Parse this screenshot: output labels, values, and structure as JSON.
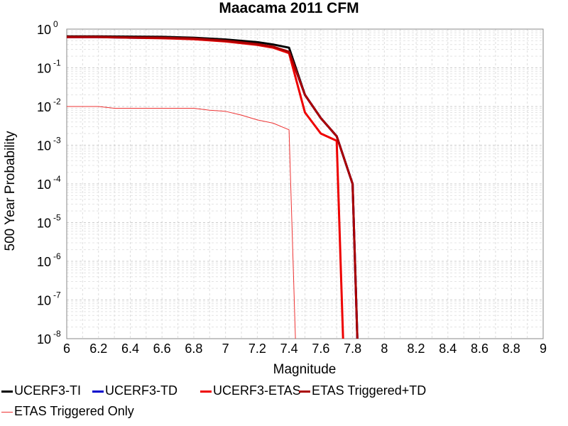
{
  "chart_data": {
    "type": "line",
    "title": "Maacama 2011 CFM",
    "xlabel": "Magnitude",
    "ylabel": "500 Year Probability",
    "xlim": [
      6,
      9
    ],
    "ylim": [
      1e-08,
      1
    ],
    "y_scale": "log",
    "grid": true,
    "legend_position": "bottom",
    "x_ticks": [
      "6",
      "6.2",
      "6.4",
      "6.6",
      "6.8",
      "7",
      "7.2",
      "7.4",
      "7.6",
      "7.8",
      "8",
      "8.2",
      "8.4",
      "8.6",
      "8.8",
      "9"
    ],
    "y_ticks": [
      {
        "base": "10",
        "exp": "0"
      },
      {
        "base": "10",
        "exp": "-1"
      },
      {
        "base": "10",
        "exp": "-2"
      },
      {
        "base": "10",
        "exp": "-3"
      },
      {
        "base": "10",
        "exp": "-4"
      },
      {
        "base": "10",
        "exp": "-5"
      },
      {
        "base": "10",
        "exp": "-6"
      },
      {
        "base": "10",
        "exp": "-7"
      },
      {
        "base": "10",
        "exp": "-8"
      }
    ],
    "series": [
      {
        "name": "UCERF3-TI",
        "color": "#000000",
        "width": 3,
        "x": [
          6.0,
          6.2,
          6.4,
          6.6,
          6.8,
          7.0,
          7.2,
          7.3,
          7.4,
          7.5,
          7.6,
          7.7,
          7.8,
          7.83
        ],
        "y": [
          0.65,
          0.65,
          0.64,
          0.63,
          0.6,
          0.54,
          0.46,
          0.4,
          0.33,
          0.02,
          0.005,
          0.0017,
          0.0001,
          1e-08
        ]
      },
      {
        "name": "UCERF3-TD",
        "color": "#0000cc",
        "width": 3,
        "x": [
          6.0,
          6.2,
          6.4,
          6.6,
          6.8,
          7.0,
          7.2,
          7.3,
          7.4,
          7.5,
          7.6,
          7.7,
          7.8,
          7.83
        ],
        "y": [
          0.62,
          0.62,
          0.6,
          0.59,
          0.56,
          0.49,
          0.4,
          0.34,
          0.26,
          0.02,
          0.005,
          0.0017,
          0.0001,
          1e-08
        ]
      },
      {
        "name": "UCERF3-ETAS",
        "color": "#ee0000",
        "width": 3,
        "x": [
          6.0,
          6.2,
          6.4,
          6.6,
          6.8,
          7.0,
          7.2,
          7.3,
          7.4,
          7.5,
          7.6,
          7.7,
          7.74
        ],
        "y": [
          0.62,
          0.62,
          0.6,
          0.58,
          0.55,
          0.48,
          0.39,
          0.33,
          0.24,
          0.007,
          0.002,
          0.0013,
          1e-08
        ]
      },
      {
        "name": "ETAS Triggered+TD",
        "color": "#aa0000",
        "width": 3,
        "x": [
          6.0,
          6.2,
          6.4,
          6.6,
          6.8,
          7.0,
          7.2,
          7.3,
          7.4,
          7.5,
          7.6,
          7.7,
          7.8,
          7.83
        ],
        "y": [
          0.63,
          0.63,
          0.61,
          0.6,
          0.57,
          0.5,
          0.41,
          0.35,
          0.26,
          0.02,
          0.005,
          0.0017,
          0.0001,
          1e-08
        ]
      },
      {
        "name": "ETAS Triggered Only",
        "color": "#ee3333",
        "width": 1,
        "x": [
          6.0,
          6.2,
          6.3,
          6.6,
          6.8,
          6.9,
          7.0,
          7.1,
          7.2,
          7.3,
          7.4,
          7.44
        ],
        "y": [
          0.01,
          0.01,
          0.009,
          0.009,
          0.009,
          0.008,
          0.0075,
          0.006,
          0.0045,
          0.0037,
          0.0025,
          1e-08
        ]
      }
    ]
  }
}
